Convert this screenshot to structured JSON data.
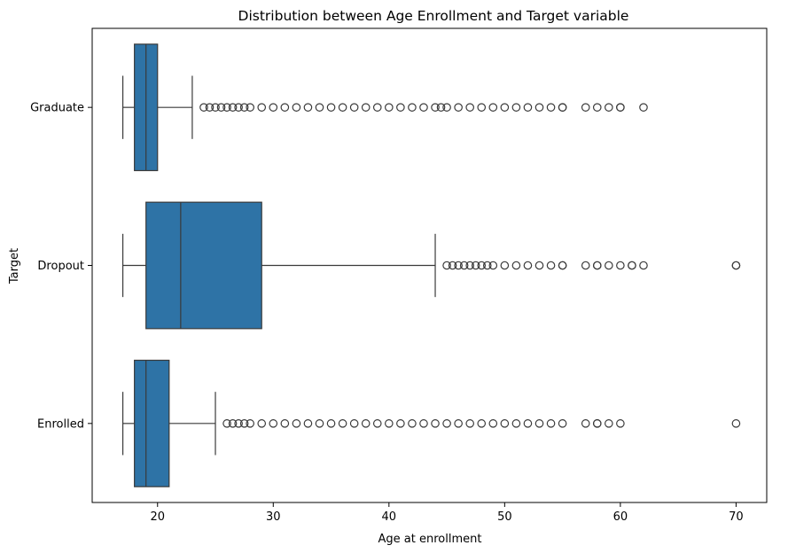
{
  "chart_data": {
    "type": "boxplot",
    "orientation": "horizontal",
    "title": "Distribution between Age Enrollment and Target variable",
    "xlabel": "Age at enrollment",
    "ylabel": "Target",
    "xlim": [
      14.35,
      72.65
    ],
    "xticks": [
      20,
      30,
      40,
      50,
      60,
      70
    ],
    "grid": false,
    "box_color": "#2e73a6",
    "line_color": "#3a3a3a",
    "categories": [
      "Graduate",
      "Dropout",
      "Enrolled"
    ],
    "series": [
      {
        "category": "Graduate",
        "whisker_low": 17,
        "q1": 18,
        "median": 19,
        "q3": 20,
        "whisker_high": 23,
        "outliers": [
          24,
          24.5,
          25,
          25.5,
          26,
          26.5,
          27,
          27.5,
          28,
          29,
          30,
          31,
          32,
          33,
          34,
          35,
          36,
          37,
          38,
          39,
          40,
          41,
          42,
          43,
          44,
          44.5,
          45,
          46,
          47,
          48,
          49,
          50,
          51,
          52,
          53,
          54,
          55,
          55,
          57,
          58,
          59,
          60,
          60,
          62
        ]
      },
      {
        "category": "Dropout",
        "whisker_low": 17,
        "q1": 19,
        "median": 22,
        "q3": 29,
        "whisker_high": 44,
        "outliers": [
          45,
          45.5,
          46,
          46.5,
          47,
          47.5,
          48,
          48.5,
          49,
          50,
          51,
          52,
          53,
          54,
          55,
          55,
          57,
          58,
          58,
          59,
          60,
          61,
          61,
          62,
          70,
          70
        ]
      },
      {
        "category": "Enrolled",
        "whisker_low": 17,
        "q1": 18,
        "median": 19,
        "q3": 21,
        "whisker_high": 25,
        "outliers": [
          26,
          26.5,
          27,
          27.5,
          28,
          29,
          30,
          31,
          32,
          33,
          34,
          35,
          36,
          37,
          38,
          39,
          40,
          41,
          42,
          43,
          44,
          45,
          46,
          47,
          48,
          49,
          50,
          51,
          52,
          53,
          54,
          55,
          57,
          58,
          58,
          59,
          60,
          70
        ]
      }
    ]
  }
}
